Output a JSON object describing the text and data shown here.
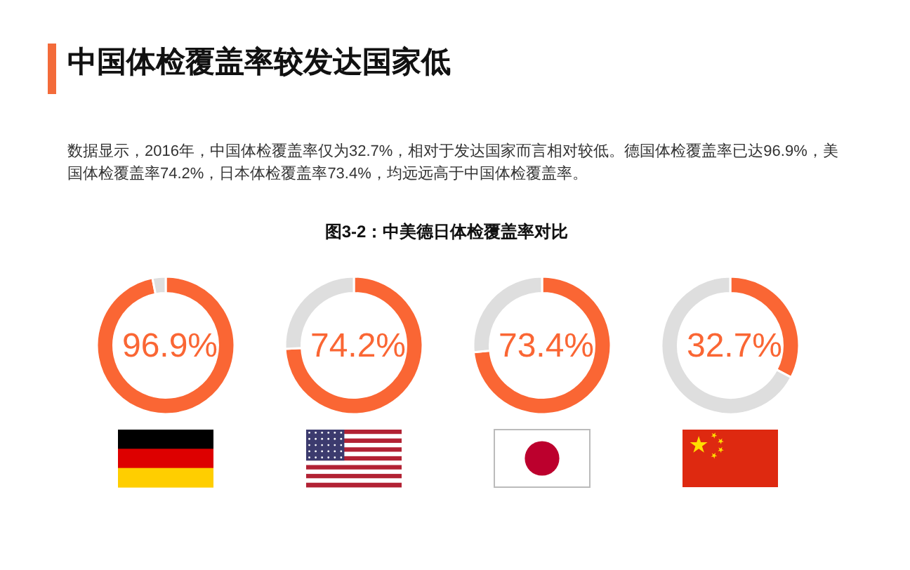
{
  "chart_data": [
    {
      "type": "other",
      "title": "中国体检覆盖率较发达国家低",
      "subtitle": "数据显示，2016年，中国体检覆盖率仅为32.7%，相对于发达国家而言相对较低。德国体检覆盖率已达96.9%，美国体检覆盖率74.2%，日本体检覆盖率73.4%，均远远高于中国体检覆盖率。",
      "annotations": [
        "图3-2：中美德日体检覆盖率对比"
      ]
    },
    {
      "type": "donut",
      "categories": [
        null,
        null
      ],
      "values": [
        96.9,
        3.1
      ],
      "colors": [
        "#fa6634",
        "#dedede"
      ],
      "value_labels": [
        "96.9%",
        null
      ]
    },
    {
      "type": "donut",
      "categories": [
        null,
        null
      ],
      "values": [
        74.2,
        25.8
      ],
      "colors": [
        "#fa6634",
        "#dedede"
      ],
      "value_labels": [
        "74.2%",
        null
      ]
    },
    {
      "type": "donut",
      "categories": [
        null,
        null
      ],
      "values": [
        73.4,
        26.6
      ],
      "colors": [
        "#fa6634",
        "#dedede"
      ],
      "value_labels": [
        "73.4%",
        null
      ]
    },
    {
      "type": "donut",
      "categories": [
        null,
        null
      ],
      "values": [
        32.7,
        67.3
      ],
      "colors": [
        "#fa6634",
        "#dedede"
      ],
      "value_labels": [
        "32.7%",
        null
      ]
    }
  ]
}
